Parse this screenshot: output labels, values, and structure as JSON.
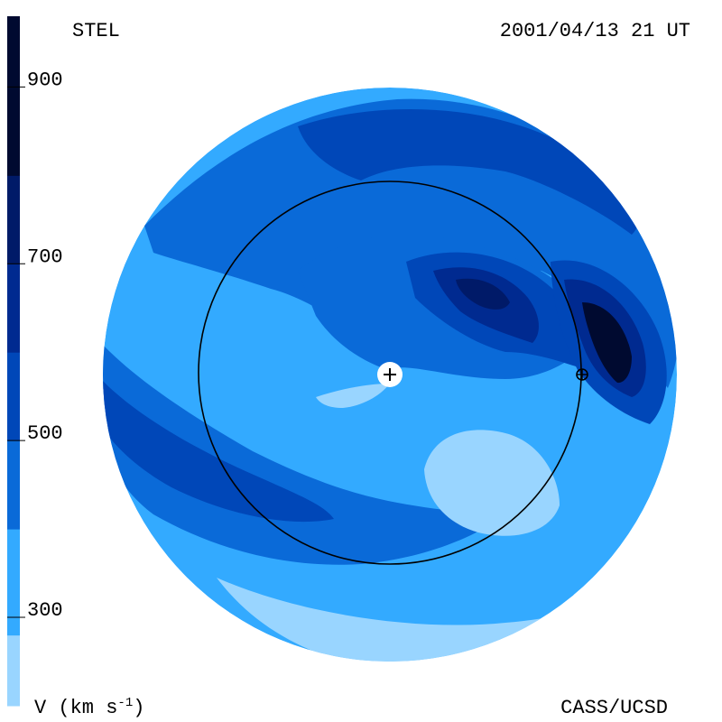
{
  "header": {
    "left_label": "STEL",
    "date_label": "2001/04/13 21 UT"
  },
  "footer": {
    "units_label": "V (km s",
    "units_exp": "-1",
    "units_close": ")",
    "credit": "CASS/UCSD"
  },
  "chart_data": {
    "type": "heatmap",
    "title": "",
    "colorbar": {
      "quantity": "V",
      "units": "km s-1",
      "range": [
        200,
        980
      ],
      "ticks": [
        300,
        500,
        700,
        900
      ],
      "levels": [
        {
          "from": 200,
          "to": 280,
          "color": "#99d5ff"
        },
        {
          "from": 280,
          "to": 400,
          "color": "#33aaff"
        },
        {
          "from": 400,
          "to": 500,
          "color": "#0a6ad8"
        },
        {
          "from": 500,
          "to": 600,
          "color": "#0047b8"
        },
        {
          "from": 600,
          "to": 700,
          "color": "#002a90"
        },
        {
          "from": 700,
          "to": 800,
          "color": "#001a68"
        },
        {
          "from": 800,
          "to": 980,
          "color": "#000a30"
        }
      ]
    },
    "markers": [
      {
        "name": "sun",
        "symbol": "+"
      },
      {
        "name": "earth",
        "symbol": "⊕"
      }
    ],
    "reference_circle": "1 AU"
  }
}
